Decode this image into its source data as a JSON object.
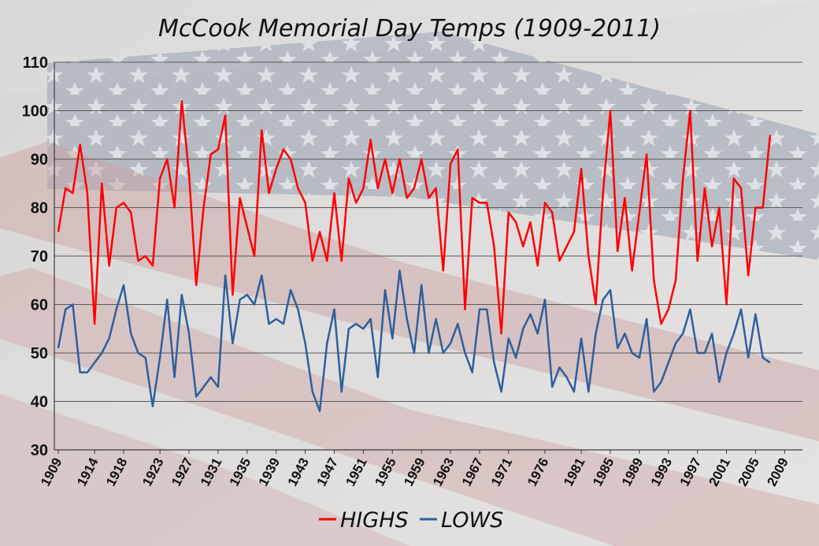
{
  "chart_data": {
    "type": "line",
    "title": "McCook Memorial Day Temps (1909-2011)",
    "xlabel": "",
    "ylabel": "",
    "ylim": [
      30,
      110
    ],
    "y_ticks": [
      30,
      40,
      50,
      60,
      70,
      80,
      90,
      100,
      110
    ],
    "x_range": [
      1909,
      2011
    ],
    "x_tick_labels": [
      "1909",
      "1914",
      "1918",
      "1923",
      "1927",
      "1931",
      "1935",
      "1939",
      "1943",
      "1947",
      "1951",
      "1955",
      "1959",
      "1963",
      "1967",
      "1971",
      "1976",
      "1981",
      "1985",
      "1989",
      "1993",
      "1997",
      "2001",
      "2005",
      "2009"
    ],
    "grid": true,
    "legend_position": "bottom",
    "series": [
      {
        "name": "HIGHS",
        "color": "#ff0000",
        "values": [
          75,
          84,
          83,
          93,
          83,
          56,
          85,
          68,
          80,
          81,
          79,
          69,
          70,
          68,
          86,
          90,
          80,
          102,
          87,
          64,
          80,
          91,
          92,
          99,
          62,
          82,
          76,
          70,
          96,
          83,
          88,
          92,
          90,
          84,
          81,
          69,
          75,
          69,
          83,
          69,
          86,
          81,
          84,
          94,
          84,
          90,
          83,
          90,
          82,
          84,
          90,
          82,
          84,
          67,
          89,
          92,
          59,
          82,
          81,
          81,
          72,
          54,
          79,
          77,
          72,
          77,
          68,
          81,
          79,
          69,
          72,
          75,
          88,
          70,
          60,
          83,
          100,
          71,
          82,
          67,
          79,
          91,
          65,
          56,
          59,
          65,
          86,
          100,
          69,
          84,
          72,
          80,
          60,
          86,
          84,
          66,
          80,
          80,
          95
        ]
      },
      {
        "name": "LOWS",
        "color": "#2e5f9c",
        "values": [
          51,
          59,
          60,
          46,
          46,
          48,
          50,
          53,
          59,
          64,
          54,
          50,
          49,
          39,
          49,
          61,
          45,
          62,
          54,
          41,
          43,
          45,
          43,
          66,
          52,
          61,
          62,
          60,
          66,
          56,
          57,
          56,
          63,
          59,
          52,
          42,
          38,
          52,
          59,
          42,
          55,
          56,
          55,
          57,
          45,
          63,
          53,
          67,
          57,
          50,
          64,
          50,
          57,
          50,
          52,
          56,
          50,
          46,
          59,
          59,
          48,
          42,
          53,
          49,
          55,
          58,
          54,
          61,
          43,
          47,
          45,
          42,
          53,
          42,
          54,
          61,
          63,
          51,
          54,
          50,
          49,
          57,
          42,
          44,
          48,
          52,
          54,
          59,
          50,
          50,
          54,
          44,
          50,
          54,
          59,
          49,
          58,
          49,
          48
        ]
      }
    ]
  }
}
